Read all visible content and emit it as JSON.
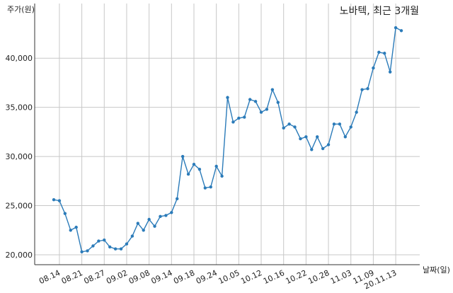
{
  "chart_data": {
    "type": "line",
    "title": "노바텍, 최근 3개월",
    "xlabel": "날짜(일)",
    "ylabel": "주가(원)",
    "ylim": [
      19000,
      45000
    ],
    "yticks": [
      20000,
      25000,
      30000,
      35000,
      40000
    ],
    "ytick_labels": [
      "20,000",
      "25,000",
      "30,000",
      "35,000",
      "40,000"
    ],
    "grid": true,
    "color": "#2b7bb9",
    "xtick_labels": [
      "08.14",
      "08.21",
      "08.27",
      "09.02",
      "09.08",
      "09.14",
      "09.18",
      "09.24",
      "10.05",
      "10.12",
      "10.16",
      "10.22",
      "10.28",
      "11.03",
      "11.09",
      "20.11.13"
    ],
    "xtick_indices": [
      1,
      5,
      9,
      13,
      17,
      21,
      25,
      29,
      33,
      37,
      41,
      45,
      49,
      53,
      57,
      61
    ],
    "series": [
      {
        "values": [
          25600,
          25500,
          24200,
          22500,
          22800,
          20300,
          20400,
          20900,
          21400,
          21500,
          20800,
          20600,
          20600,
          21100,
          21900,
          23200,
          22500,
          23600,
          22900,
          23900,
          24000,
          24300,
          25700,
          30000,
          28200,
          29200,
          28700,
          26800,
          26900,
          29000,
          28000,
          36000,
          33500,
          33900,
          34000,
          35800,
          35600,
          34500,
          34800,
          36800,
          35500,
          32900,
          33300,
          33000,
          31800,
          32000,
          30700,
          32000,
          30800,
          31200,
          33300,
          33300,
          32000,
          33000,
          34500,
          36800,
          36900,
          39000,
          40600,
          40500,
          38600,
          43100,
          42800
        ]
      }
    ]
  }
}
